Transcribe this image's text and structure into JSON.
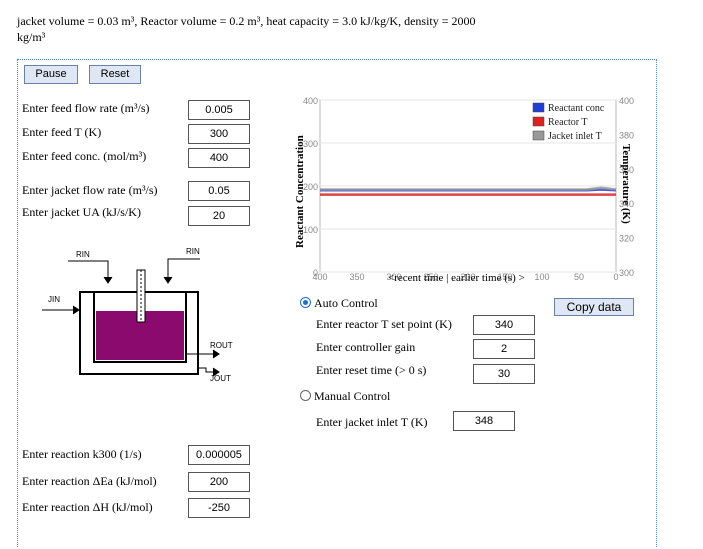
{
  "header": {
    "line1": "jacket volume = 0.03 m³, Reactor volume = 0.2 m³, heat capacity = 3.0 kJ/kg/K, density = 2000",
    "line2": "kg/m³"
  },
  "buttons": {
    "pause": "Pause",
    "reset": "Reset",
    "copy_data": "Copy data"
  },
  "feed": {
    "flow_label": "Enter feed flow rate (m³/s)",
    "flow_value": "0.005",
    "temp_label": "Enter feed T (K)",
    "temp_value": "300",
    "conc_label": "Enter feed conc. (mol/m³)",
    "conc_value": "400"
  },
  "jacket": {
    "flow_label": "Enter jacket flow rate (m³/s)",
    "flow_value": "0.05",
    "ua_label": "Enter jacket UA (kJ/s/K)",
    "ua_value": "20"
  },
  "reaction": {
    "k300_label": "Enter reaction k300 (1/s)",
    "k300_value": "0.000005",
    "ea_label": "Enter reaction ΔEa (kJ/mol)",
    "ea_value": "200",
    "dh_label": "Enter reaction ΔH (kJ/mol)",
    "dh_value": "-250"
  },
  "diagram": {
    "rin_left": "RIN",
    "rin_right": "RIN",
    "jin": "JIN",
    "rout": "ROUT",
    "jout": "JOUT",
    "liquid_color": "#8b0a6e"
  },
  "control": {
    "auto_label": "Auto Control",
    "setpoint_label": "Enter reactor T set point (K)",
    "setpoint_value": "340",
    "gain_label": "Enter controller gain",
    "gain_value": "2",
    "reset_label": "Enter reset time (> 0 s)",
    "reset_value": "30",
    "manual_label": "Manual Control",
    "jacket_inlet_label": "Enter jacket inlet T (K)",
    "jacket_inlet_value": "348",
    "mode": "auto"
  },
  "chart_data": {
    "type": "line",
    "ylabel": "Reactant Concentration",
    "y2label": "Temperature (K)",
    "xlabel": "<recent time | earlier time (s) >",
    "x_ticks": [
      "400",
      "350",
      "300",
      "250",
      "200",
      "150",
      "100",
      "50",
      "0"
    ],
    "y_ticks": [
      "400",
      "300",
      "200",
      "100",
      "0"
    ],
    "y2_ticks": [
      "400",
      "380",
      "360",
      "340",
      "320",
      "300"
    ],
    "ylim": [
      0,
      400
    ],
    "y2lim": [
      300,
      400
    ],
    "xlim": [
      400,
      0
    ],
    "legend_position": "top-right",
    "series": [
      {
        "name": "Reactant conc",
        "axis": "left",
        "color": "#1f3fd6",
        "x": [
          400,
          320,
          240,
          160,
          80,
          40,
          20,
          0
        ],
        "y": [
          190,
          190,
          190,
          190,
          190,
          190,
          192,
          190
        ]
      },
      {
        "name": "Reactor T",
        "axis": "right",
        "color": "#e02020",
        "x": [
          400,
          320,
          240,
          160,
          80,
          40,
          20,
          0
        ],
        "y": [
          345,
          345,
          345,
          345,
          345,
          345,
          345,
          345
        ]
      },
      {
        "name": "Jacket inlet T",
        "axis": "right",
        "color": "#999999",
        "x": [
          400,
          320,
          240,
          160,
          80,
          40,
          20,
          0
        ],
        "y": [
          348,
          348,
          348,
          348,
          348,
          348,
          349,
          348
        ]
      }
    ]
  }
}
